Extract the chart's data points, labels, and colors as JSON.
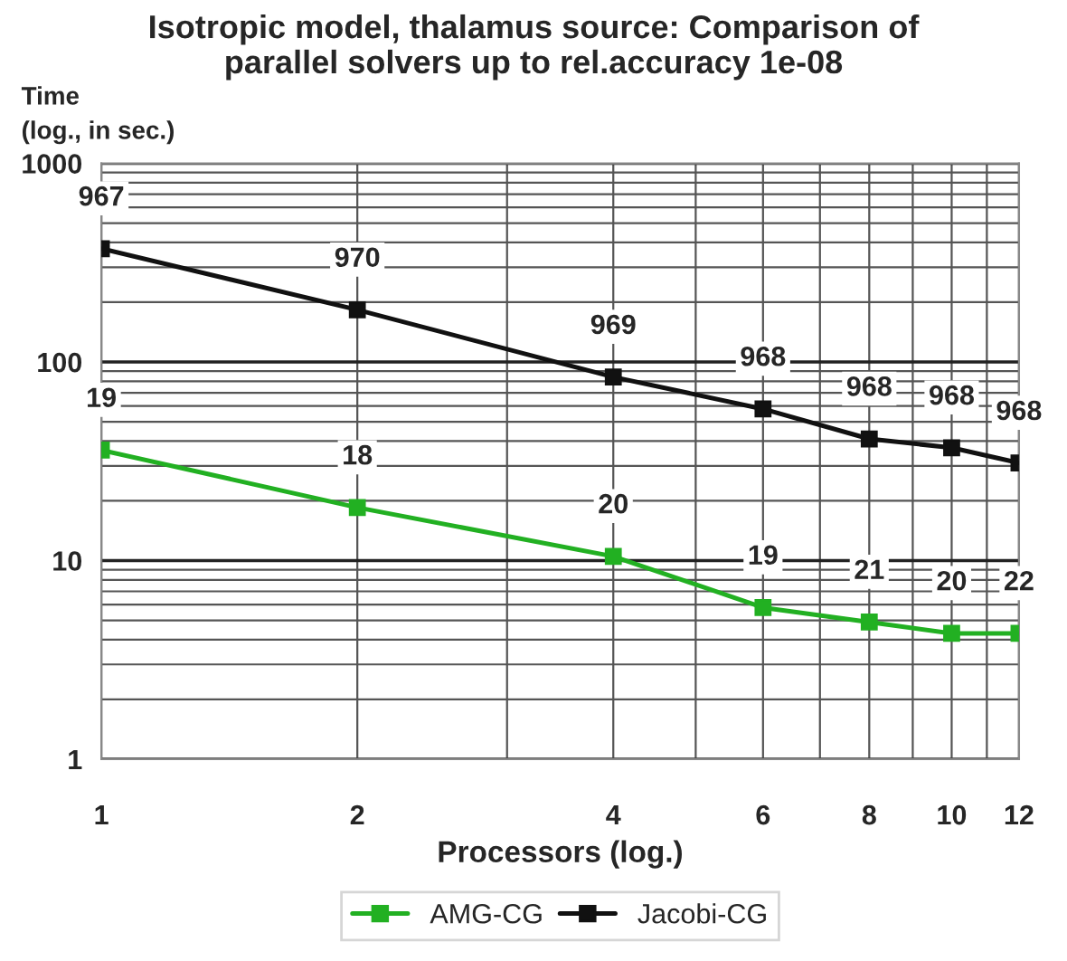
{
  "chart_data": {
    "type": "line",
    "title": "Isotropic model, thalamus source: Comparison of\nparallel solvers up to rel.accuracy 1e-08",
    "xlabel": "Processors (log.)",
    "ylabel": "Time\n(log., in sec.)",
    "x": [
      1,
      2,
      4,
      6,
      8,
      10,
      12
    ],
    "series": [
      {
        "name": "AMG-CG",
        "color": "#22b022",
        "values": [
          36,
          18.5,
          10.5,
          5.8,
          4.9,
          4.3,
          4.3
        ]
      },
      {
        "name": "Jacobi-CG",
        "color": "#111111",
        "values": [
          372,
          183,
          84,
          58,
          41,
          37,
          31
        ]
      }
    ],
    "log": "xy",
    "xlim": [
      1,
      12
    ],
    "ylim": [
      1,
      1000
    ],
    "xticks": [
      1,
      2,
      {
        "value": 3,
        "label": null
      },
      4,
      {
        "value": 5,
        "label": null
      },
      6,
      {
        "value": 7,
        "label": null
      },
      8,
      {
        "value": 9,
        "label": null
      },
      10,
      {
        "value": 11,
        "label": null
      },
      12
    ],
    "yticks": [
      1,
      10,
      100,
      1000
    ],
    "grid": true,
    "marker": "square",
    "line_style": "solid",
    "legend": "bottom",
    "annotations": [
      {
        "text": "19",
        "x": 1,
        "y": 36
      },
      {
        "text": "18",
        "x": 2,
        "y": 18.5
      },
      {
        "text": "20",
        "x": 4,
        "y": 10.5
      },
      {
        "text": "19",
        "x": 6,
        "y": 5.8
      },
      {
        "text": "21",
        "x": 8,
        "y": 4.9
      },
      {
        "text": "20",
        "x": 10,
        "y": 4.3
      },
      {
        "text": "22",
        "x": 12,
        "y": 4.3
      },
      {
        "text": "967",
        "x": 1,
        "y": 372
      },
      {
        "text": "970",
        "x": 2,
        "y": 183
      },
      {
        "text": "969",
        "x": 4,
        "y": 84
      },
      {
        "text": "968",
        "x": 6,
        "y": 58
      },
      {
        "text": "968",
        "x": 8,
        "y": 41
      },
      {
        "text": "968",
        "x": 10,
        "y": 37
      },
      {
        "text": "968",
        "x": 12,
        "y": 31
      }
    ]
  }
}
